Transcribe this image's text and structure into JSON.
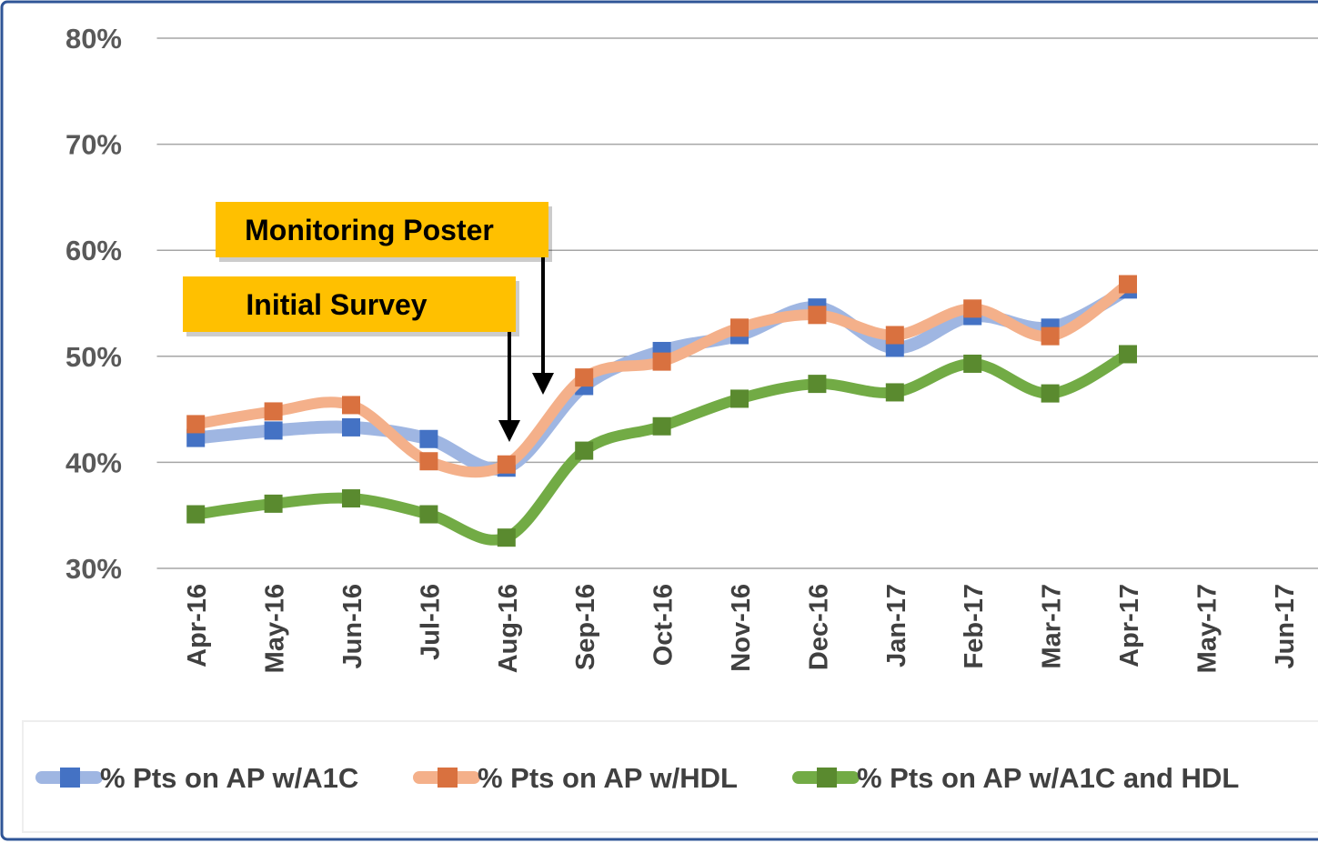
{
  "chart_data": {
    "type": "line",
    "categories": [
      "Apr-16",
      "May-16",
      "Jun-16",
      "Jul-16",
      "Aug-16",
      "Sep-16",
      "Oct-16",
      "Nov-16",
      "Dec-16",
      "Jan-17",
      "Feb-17",
      "Mar-17",
      "Apr-17",
      "May-17",
      "Jun-17"
    ],
    "series": [
      {
        "name": "% Pts on AP w/A1C",
        "color": "#4472c4",
        "line_color": "#9fb6e2",
        "values": [
          42.3,
          43.0,
          43.3,
          42.2,
          39.5,
          47.2,
          50.5,
          52.0,
          54.6,
          50.8,
          53.8,
          52.7,
          56.3,
          null,
          null
        ]
      },
      {
        "name": "% Pts on AP w/HDL",
        "color": "#d9713f",
        "line_color": "#f4b08a",
        "values": [
          43.6,
          44.8,
          45.4,
          40.1,
          39.8,
          48.0,
          49.5,
          52.7,
          53.9,
          52.0,
          54.5,
          51.9,
          56.8,
          null,
          null
        ]
      },
      {
        "name": "% Pts on AP w/A1C and HDL",
        "color": "#5a8a2f",
        "line_color": "#72ab45",
        "values": [
          35.1,
          36.1,
          36.6,
          35.1,
          32.9,
          41.1,
          43.4,
          46.0,
          47.4,
          46.6,
          49.3,
          46.5,
          50.2,
          null,
          null
        ]
      }
    ],
    "ylim": [
      30,
      80
    ],
    "yticks": [
      {
        "value": 30,
        "label": "30%"
      },
      {
        "value": 40,
        "label": "40%"
      },
      {
        "value": 50,
        "label": "50%"
      },
      {
        "value": 60,
        "label": "60%"
      },
      {
        "value": 70,
        "label": "70%"
      },
      {
        "value": 80,
        "label": "80%"
      }
    ],
    "grid": true,
    "legend": "bottom",
    "annotations": [
      {
        "text": "Monitoring Poster"
      },
      {
        "text": "Initial Survey"
      }
    ]
  }
}
